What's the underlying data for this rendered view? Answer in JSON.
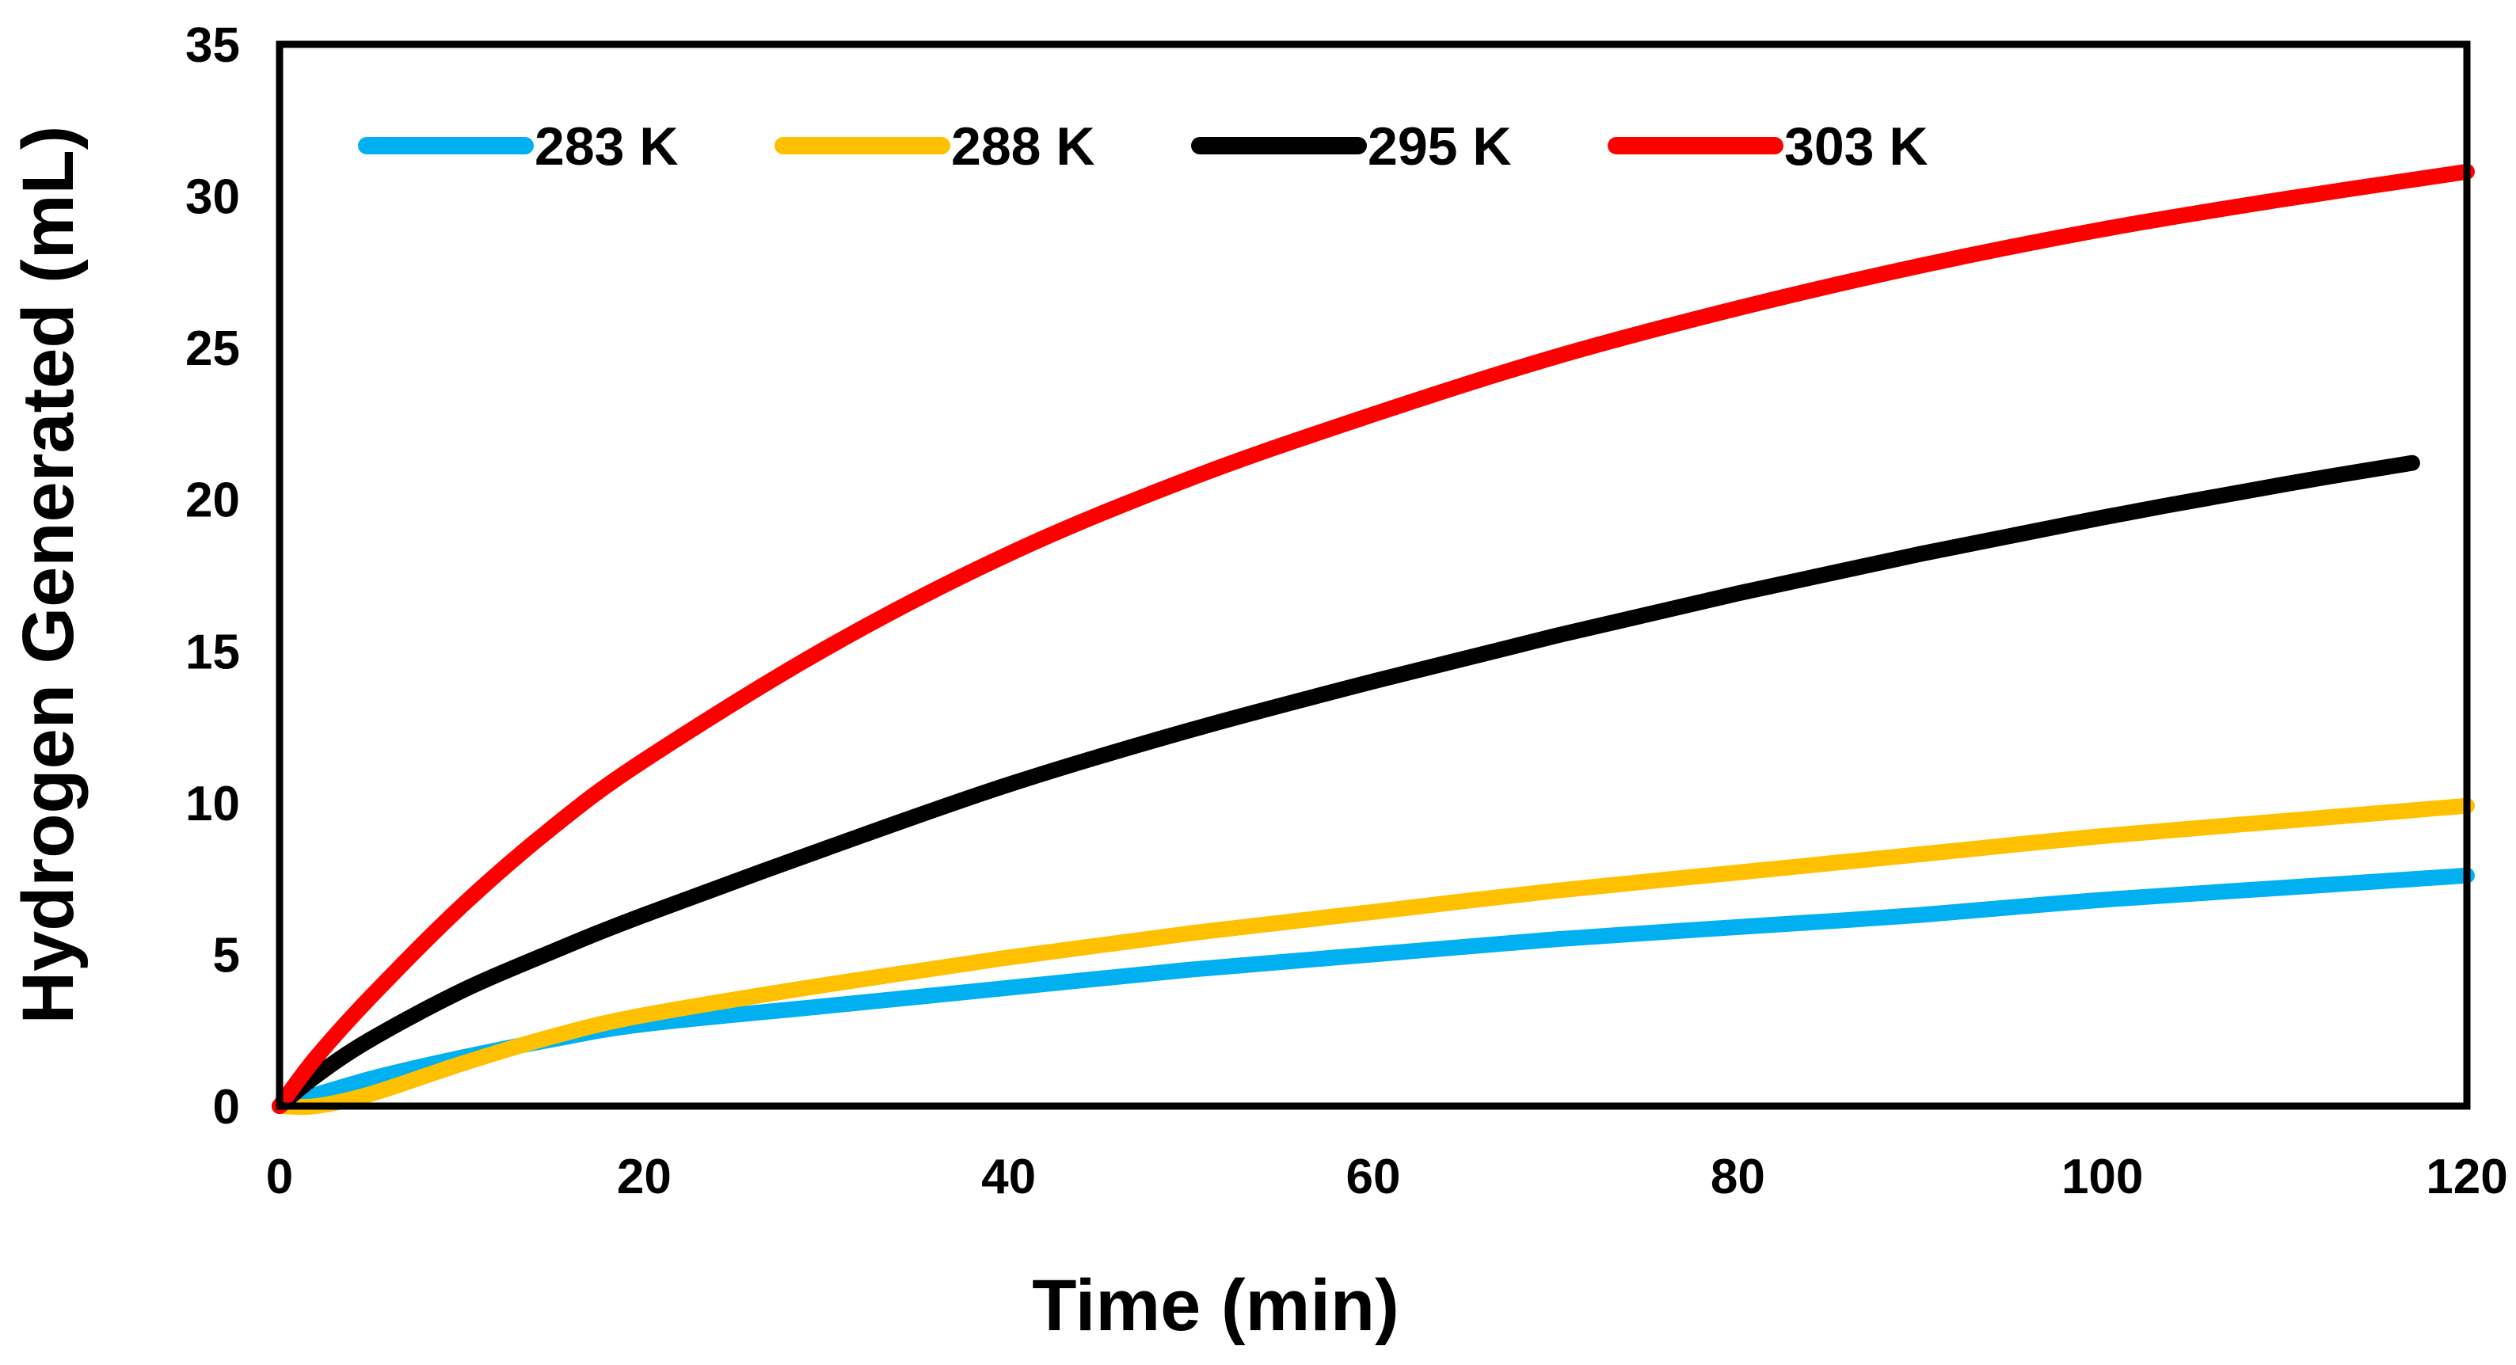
{
  "chart_data": {
    "type": "line",
    "title": "",
    "xlabel": "Time (min)",
    "ylabel": "Hydrogen Generated (mL)",
    "xlim": [
      0,
      120
    ],
    "ylim": [
      0,
      35
    ],
    "xticks": [
      0,
      20,
      40,
      60,
      80,
      100,
      120
    ],
    "yticks": [
      0,
      5,
      10,
      15,
      20,
      25,
      30,
      35
    ],
    "grid": false,
    "legend_position": "top",
    "series": [
      {
        "name": "283 K",
        "color": "#00B0F0",
        "x": [
          0,
          5,
          10,
          15,
          20,
          30,
          40,
          50,
          60,
          70,
          80,
          90,
          100,
          110,
          120
        ],
        "y": [
          0,
          0.9,
          1.6,
          2.2,
          2.7,
          3.3,
          3.9,
          4.5,
          5.0,
          5.5,
          5.9,
          6.3,
          6.8,
          7.2,
          7.6
        ]
      },
      {
        "name": "288 K",
        "color": "#FFC000",
        "x": [
          0,
          2,
          5,
          10,
          15,
          20,
          30,
          40,
          50,
          60,
          70,
          80,
          90,
          100,
          110,
          120
        ],
        "y": [
          0,
          0,
          0.4,
          1.4,
          2.3,
          3.0,
          4.0,
          4.9,
          5.7,
          6.4,
          7.1,
          7.7,
          8.3,
          8.9,
          9.4,
          9.9
        ]
      },
      {
        "name": "295 K",
        "color": "#000000",
        "x": [
          0,
          2,
          5,
          10,
          15,
          20,
          30,
          40,
          50,
          60,
          70,
          80,
          90,
          100,
          110,
          117
        ],
        "y": [
          0,
          1.0,
          2.2,
          3.8,
          5.1,
          6.3,
          8.5,
          10.6,
          12.4,
          14.0,
          15.5,
          16.9,
          18.2,
          19.4,
          20.5,
          21.2
        ]
      },
      {
        "name": "303 K",
        "color": "#FF0000",
        "x": [
          0,
          2,
          5,
          10,
          15,
          20,
          30,
          40,
          50,
          60,
          70,
          80,
          90,
          100,
          110,
          120
        ],
        "y": [
          0,
          1.6,
          3.6,
          6.6,
          9.2,
          11.4,
          15.1,
          18.2,
          20.7,
          22.8,
          24.7,
          26.3,
          27.7,
          28.9,
          29.9,
          30.8
        ]
      }
    ]
  }
}
